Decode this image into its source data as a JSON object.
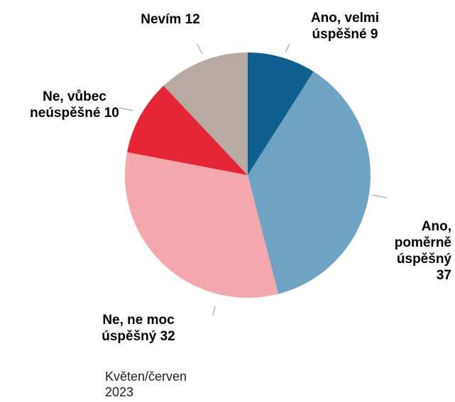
{
  "chart_data": {
    "type": "pie",
    "categories": [
      "Ano, velmi úspěšné",
      "Ano, poměrně úspěšný",
      "Ne, ne moc úspěšný",
      "Ne, vůbec neúspěšné",
      "Nevím"
    ],
    "values": [
      9,
      37,
      32,
      10,
      12
    ],
    "colors": [
      "#0e5f8f",
      "#6fa3c4",
      "#f3a8ae",
      "#e42535",
      "#b8aaa2"
    ],
    "footnote": "Květen/červen 2023"
  }
}
